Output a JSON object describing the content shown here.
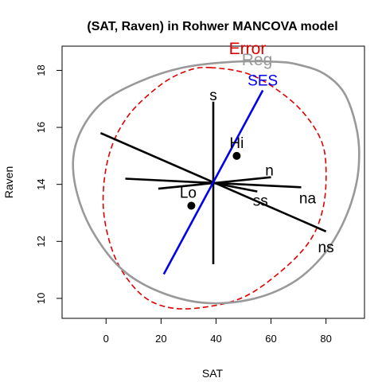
{
  "chart_data": {
    "type": "scatter",
    "title": "(SAT, Raven) in Rohwer MANCOVA model",
    "xlabel": "SAT",
    "ylabel": "Raven",
    "xlim": [
      -16,
      94
    ],
    "ylim": [
      9.3,
      18.85
    ],
    "x_ticks": [
      0,
      20,
      40,
      60,
      80
    ],
    "y_ticks": [
      10,
      12,
      14,
      16,
      18
    ],
    "grid": false,
    "center": [
      39,
      14.05
    ],
    "ellipses": [
      {
        "name": "Error",
        "color": "#e00000",
        "dash": true,
        "center": [
          39,
          14.05
        ],
        "points": [
          [
            38,
            18.1
          ],
          [
            51,
            17.9
          ],
          [
            61,
            17.4
          ],
          [
            71,
            16.6
          ],
          [
            78,
            15.6
          ],
          [
            80,
            14.6
          ],
          [
            79,
            13.2
          ],
          [
            74,
            12.0
          ],
          [
            63,
            10.9
          ],
          [
            49,
            10.0
          ],
          [
            32,
            9.65
          ],
          [
            20,
            9.75
          ],
          [
            11,
            10.3
          ],
          [
            3,
            11.5
          ],
          [
            -1,
            13.2
          ],
          [
            1,
            15.0
          ],
          [
            8,
            16.4
          ],
          [
            20,
            17.5
          ],
          [
            30,
            18.0
          ],
          [
            38,
            18.1
          ]
        ]
      },
      {
        "name": "Reg",
        "color": "#999999",
        "dash": false,
        "center": [
          39,
          14.05
        ],
        "points": [
          [
            70,
            18.2
          ],
          [
            79,
            17.9
          ],
          [
            86,
            17.3
          ],
          [
            90,
            16.4
          ],
          [
            92,
            15.3
          ],
          [
            91,
            14.0
          ],
          [
            86,
            12.6
          ],
          [
            78,
            11.4
          ],
          [
            67,
            10.5
          ],
          [
            52,
            9.95
          ],
          [
            35,
            9.85
          ],
          [
            19,
            10.25
          ],
          [
            6,
            11.0
          ],
          [
            -4,
            12.2
          ],
          [
            -10,
            13.5
          ],
          [
            -12,
            14.8
          ],
          [
            -9,
            15.9
          ],
          [
            -1,
            16.9
          ],
          [
            12,
            17.6
          ],
          [
            28,
            18.1
          ],
          [
            46,
            18.3
          ],
          [
            62,
            18.3
          ],
          [
            70,
            18.2
          ]
        ]
      }
    ],
    "vectors": [
      {
        "name": "s",
        "from": [
          39,
          11.2
        ],
        "to": [
          39,
          16.9
        ],
        "color": "#000000"
      },
      {
        "name": "n",
        "from": [
          19,
          13.85
        ],
        "to": [
          60,
          14.25
        ],
        "color": "#000000"
      },
      {
        "name": "na",
        "from": [
          7,
          14.2
        ],
        "to": [
          71,
          13.9
        ],
        "color": "#000000"
      },
      {
        "name": "ns",
        "from": [
          -2,
          15.8
        ],
        "to": [
          80,
          12.35
        ],
        "color": "#000000"
      },
      {
        "name": "ss",
        "from": [
          39,
          14.05
        ],
        "to": [
          55,
          13.75
        ],
        "color": "#000000"
      },
      {
        "name": "SES",
        "from": [
          21,
          10.85
        ],
        "to": [
          57,
          17.3
        ],
        "color": "#0000ee"
      }
    ],
    "points": [
      {
        "name": "Hi",
        "x": 47.5,
        "y": 15.0
      },
      {
        "name": "Lo",
        "x": 31,
        "y": 13.25
      }
    ],
    "legend_labels": {
      "Error": "Error",
      "Reg": "Reg"
    }
  }
}
